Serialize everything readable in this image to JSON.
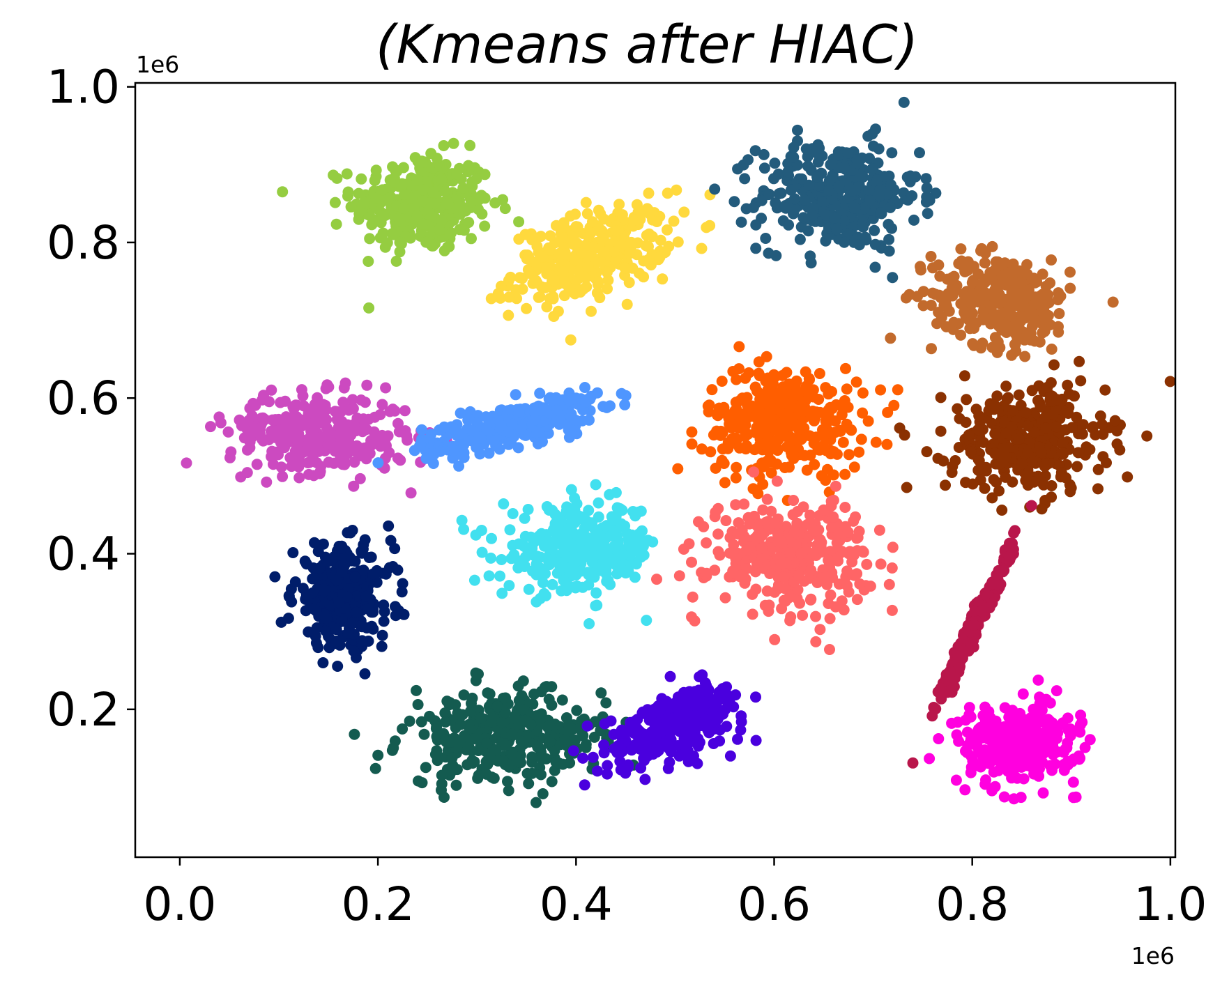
{
  "chart_data": {
    "type": "scatter",
    "title": "(Kmeans after HIAC)",
    "xlabel": "",
    "ylabel": "",
    "x_offset_label": "1e6",
    "y_offset_label": "1e6",
    "xlim": [
      -0.045,
      1.005
    ],
    "ylim": [
      0.01,
      1.005
    ],
    "x_ticks": [
      0.0,
      0.2,
      0.4,
      0.6,
      0.8,
      1.0
    ],
    "x_tick_labels": [
      "0.0",
      "0.2",
      "0.4",
      "0.6",
      "0.8",
      "1.0"
    ],
    "y_ticks": [
      0.2,
      0.4,
      0.6,
      0.8,
      1.0
    ],
    "y_tick_labels": [
      "0.2",
      "0.4",
      "0.6",
      "0.8",
      "1.0"
    ],
    "grid": false,
    "legend": "none",
    "clusters": [
      {
        "color": "#95cd41",
        "center": [
          0.245,
          0.85
        ],
        "spread": [
          0.035,
          0.032
        ],
        "rho": 0.0,
        "n": 320
      },
      {
        "color": "#ffd93d",
        "center": [
          0.415,
          0.785
        ],
        "spread": [
          0.04,
          0.03
        ],
        "rho": 0.45,
        "n": 320
      },
      {
        "color": "#235b7c",
        "center": [
          0.665,
          0.86
        ],
        "spread": [
          0.04,
          0.035
        ],
        "rho": 0.0,
        "n": 340
      },
      {
        "color": "#c26a2c",
        "center": [
          0.83,
          0.725
        ],
        "spread": [
          0.035,
          0.03
        ],
        "rho": -0.15,
        "n": 300
      },
      {
        "color": "#cc4ac0",
        "center": [
          0.14,
          0.555
        ],
        "spread": [
          0.045,
          0.025
        ],
        "rho": -0.1,
        "n": 330
      },
      {
        "color": "#4f96ff",
        "center": [
          0.335,
          0.565
        ],
        "spread": [
          0.045,
          0.02
        ],
        "rho": 0.75,
        "n": 300
      },
      {
        "color": "#ff5e00",
        "center": [
          0.61,
          0.57
        ],
        "spread": [
          0.04,
          0.035
        ],
        "rho": 0.0,
        "n": 330
      },
      {
        "color": "#8b3101",
        "center": [
          0.855,
          0.545
        ],
        "spread": [
          0.04,
          0.035
        ],
        "rho": 0.0,
        "n": 340
      },
      {
        "color": "#001d6a",
        "center": [
          0.165,
          0.345
        ],
        "spread": [
          0.025,
          0.032
        ],
        "rho": 0.0,
        "n": 300
      },
      {
        "color": "#42e0ef",
        "center": [
          0.405,
          0.405
        ],
        "spread": [
          0.04,
          0.028
        ],
        "rho": 0.1,
        "n": 320
      },
      {
        "color": "#ff6566",
        "center": [
          0.615,
          0.4
        ],
        "spread": [
          0.04,
          0.035
        ],
        "rho": 0.0,
        "n": 330
      },
      {
        "color": "#b9164b",
        "center": [
          0.805,
          0.315
        ],
        "spread": [
          0.018,
          0.048
        ],
        "rho": 0.98,
        "n": 260
      },
      {
        "color": "#145b50",
        "center": [
          0.33,
          0.165
        ],
        "spread": [
          0.05,
          0.03
        ],
        "rho": 0.05,
        "n": 330
      },
      {
        "color": "#4a00de",
        "center": [
          0.5,
          0.18
        ],
        "spread": [
          0.035,
          0.025
        ],
        "rho": 0.55,
        "n": 300
      },
      {
        "color": "#ff00df",
        "center": [
          0.845,
          0.155
        ],
        "spread": [
          0.03,
          0.025
        ],
        "rho": 0.0,
        "n": 300
      }
    ]
  }
}
